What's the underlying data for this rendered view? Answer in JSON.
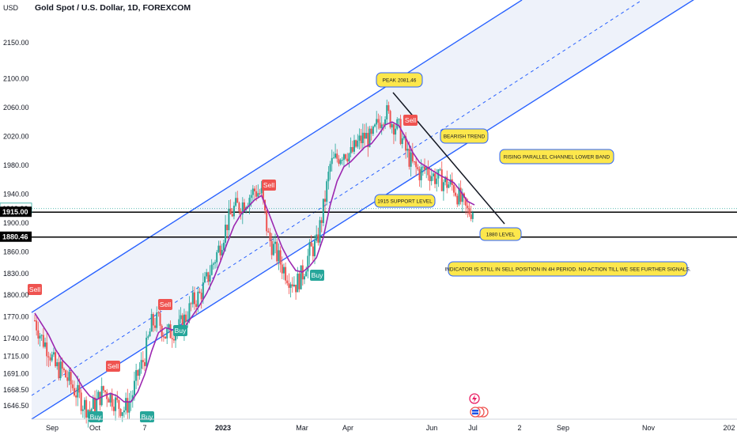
{
  "header": {
    "currency": "USD",
    "title": "Gold Spot / U.S. Dollar, 1D, FOREXCOM"
  },
  "colors": {
    "up": "#26a69a",
    "down": "#ef5350",
    "channel": "#2962ff",
    "channel_fill": "#eef2fa",
    "indicator": "#9c27b0",
    "trend": "#131722",
    "note_bg": "#fde74c",
    "note_border": "#2962ff"
  },
  "chart_data": {
    "type": "candlestick",
    "ylim": [
      1628,
      2185
    ],
    "y_ticks": [
      "2150.00",
      "2100.00",
      "2060.00",
      "2020.00",
      "1980.00",
      "1940.00",
      "1900.00",
      "1860.00",
      "1830.00",
      "1800.00",
      "1770.00",
      "1740.00",
      "1715.00",
      "1691.00",
      "1668.50",
      "1646.50"
    ],
    "x_ticks": [
      "Sep",
      "Oct",
      "7",
      "2023",
      "Mar",
      "Apr",
      "Jun",
      "Jul",
      "2",
      "Sep",
      "Nov",
      "202"
    ],
    "price_labels": [
      {
        "text": "1919.90",
        "value": 1919.9,
        "style": "light"
      },
      {
        "text": "1915.00",
        "value": 1915,
        "style": "dark"
      },
      {
        "text": "1880.46",
        "value": 1880.46,
        "style": "dark"
      }
    ],
    "horizontal_levels": [
      1915,
      1880.46
    ],
    "annotations": [
      "PEAK 2081,46",
      "BEARISH TREND",
      "RISING PARALLEL CHANNEL LOWER BAND",
      "1915 SUPPORT LEVEL",
      "1880 LEVEL",
      "INDICATOR IS STILL IN SELL POSITION IN 4H PERIOD. NO ACTION TILL WE SEE FURTHER SIGNALS."
    ],
    "signals": [
      {
        "label": "Sell",
        "type": "sell"
      },
      {
        "label": "Sell",
        "type": "sell"
      },
      {
        "label": "Buy",
        "type": "buy"
      },
      {
        "label": "Sell",
        "type": "sell"
      },
      {
        "label": "Buy",
        "type": "buy"
      },
      {
        "label": "Buy",
        "type": "buy"
      },
      {
        "label": "Sell",
        "type": "sell"
      },
      {
        "label": "Buy",
        "type": "buy"
      },
      {
        "label": "Sell",
        "type": "sell"
      }
    ],
    "close_path": [
      1765,
      1740,
      1725,
      1700,
      1695,
      1680,
      1665,
      1650,
      1640,
      1652,
      1668,
      1660,
      1648,
      1642,
      1655,
      1690,
      1715,
      1760,
      1765,
      1745,
      1750,
      1755,
      1770,
      1790,
      1800,
      1820,
      1845,
      1870,
      1900,
      1920,
      1925,
      1935,
      1945,
      1940,
      1880,
      1860,
      1840,
      1825,
      1815,
      1830,
      1860,
      1870,
      1920,
      1980,
      1990,
      2000,
      1995,
      2010,
      2020,
      2015,
      2040,
      2055,
      2040,
      2030,
      2000,
      1980,
      1970,
      1975,
      1965,
      1960,
      1955,
      1950,
      1930,
      1915,
      1920
    ],
    "indicator_path": [
      1775,
      1760,
      1745,
      1725,
      1710,
      1700,
      1688,
      1672,
      1660,
      1655,
      1660,
      1664,
      1660,
      1652,
      1652,
      1666,
      1690,
      1722,
      1748,
      1755,
      1752,
      1752,
      1758,
      1772,
      1786,
      1802,
      1822,
      1846,
      1872,
      1896,
      1912,
      1922,
      1932,
      1938,
      1915,
      1890,
      1866,
      1848,
      1834,
      1832,
      1840,
      1852,
      1880,
      1925,
      1958,
      1978,
      1985,
      1995,
      2005,
      2010,
      2022,
      2036,
      2040,
      2035,
      2018,
      1998,
      1984,
      1978,
      1972,
      1966,
      1961,
      1956,
      1944,
      1930,
      1925
    ]
  }
}
